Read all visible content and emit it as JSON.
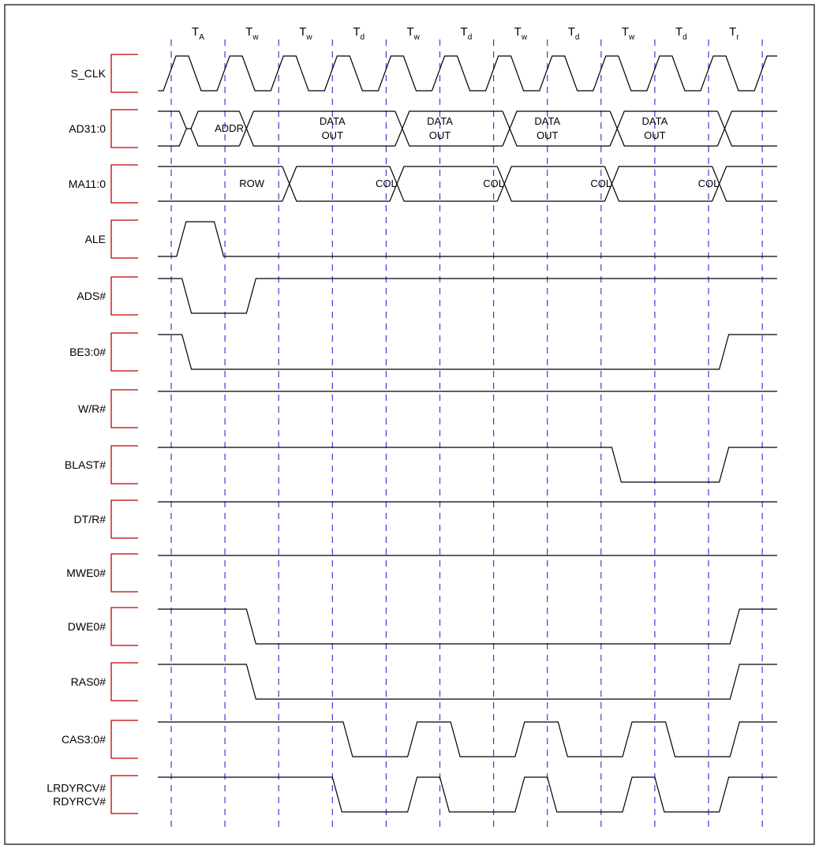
{
  "title": "",
  "colors": {
    "bracket": "#c00000",
    "clock_lines": "#3b3bdc",
    "trace": "#000000"
  },
  "cycles": [
    {
      "main": "T",
      "sub": "A"
    },
    {
      "main": "T",
      "sub": "w"
    },
    {
      "main": "T",
      "sub": "w"
    },
    {
      "main": "T",
      "sub": "d"
    },
    {
      "main": "T",
      "sub": "w"
    },
    {
      "main": "T",
      "sub": "d"
    },
    {
      "main": "T",
      "sub": "w"
    },
    {
      "main": "T",
      "sub": "d"
    },
    {
      "main": "T",
      "sub": "w"
    },
    {
      "main": "T",
      "sub": "d"
    },
    {
      "main": "T",
      "sub": "r"
    }
  ],
  "signals": [
    {
      "id": "s-clk",
      "label": "S_CLK",
      "type": "clock"
    },
    {
      "id": "ad",
      "label": "AD31:0",
      "type": "bus",
      "labels": [
        {
          "lines": [
            "ADDR"
          ],
          "t": 1.08
        },
        {
          "lines": [
            "DATA",
            "OUT"
          ],
          "t": 3.0
        },
        {
          "lines": [
            "DATA",
            "OUT"
          ],
          "t": 5.0
        },
        {
          "lines": [
            "DATA",
            "OUT"
          ],
          "t": 7.0
        },
        {
          "lines": [
            "DATA",
            "OUT"
          ],
          "t": 9.0
        }
      ]
    },
    {
      "id": "ma",
      "label": "MA11:0",
      "type": "bus",
      "labels": [
        {
          "lines": [
            "ROW"
          ],
          "t": 1.5
        },
        {
          "lines": [
            "COL"
          ],
          "t": 4.0
        },
        {
          "lines": [
            "COL"
          ],
          "t": 6.0
        },
        {
          "lines": [
            "COL"
          ],
          "t": 8.0
        },
        {
          "lines": [
            "COL"
          ],
          "t": 10.0
        }
      ]
    },
    {
      "id": "ale",
      "label": "ALE",
      "type": "digital"
    },
    {
      "id": "ads",
      "label": "ADS#",
      "type": "digital"
    },
    {
      "id": "be",
      "label": "BE3:0#",
      "type": "digital"
    },
    {
      "id": "wr",
      "label": "W/R#",
      "type": "digital"
    },
    {
      "id": "blast",
      "label": "BLAST#",
      "type": "digital"
    },
    {
      "id": "dtr",
      "label": "DT/R#",
      "type": "digital"
    },
    {
      "id": "mwe",
      "label": "MWE0#",
      "type": "digital"
    },
    {
      "id": "dwe",
      "label": "DWE0#",
      "type": "digital"
    },
    {
      "id": "ras",
      "label": "RAS0#",
      "type": "digital"
    },
    {
      "id": "cas",
      "label": "CAS3:0#",
      "type": "digital"
    },
    {
      "id": "rdy",
      "label": "LRDYRCV#\nRDYRCV#",
      "type": "digital"
    }
  ]
}
